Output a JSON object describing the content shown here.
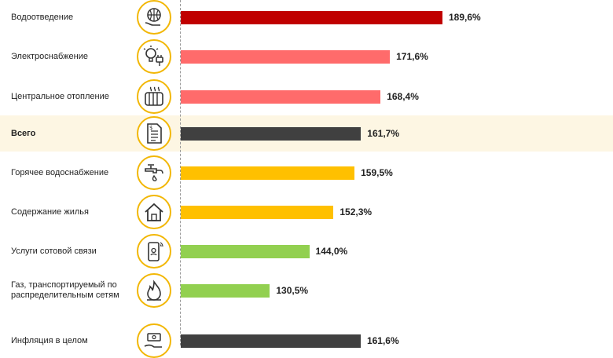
{
  "colors": {
    "dark_red": "#c00000",
    "salmon": "#ff6b6b",
    "dark": "#404040",
    "amber": "#ffc000",
    "green": "#92d050",
    "highlight_row": "#fdf6e3",
    "icon_ring": "#f2b705"
  },
  "chart_data": {
    "type": "bar",
    "orientation": "horizontal",
    "value_suffix": "%",
    "grid": false,
    "legend": "none",
    "xlim": [
      100,
      190
    ],
    "rows": [
      {
        "label": "Водоотведение",
        "value": 189.6,
        "value_label": "189,6%",
        "color": "#c00000",
        "icon": "globe-hand-icon",
        "bold": false,
        "highlight": false
      },
      {
        "label": "Электроснабжение",
        "value": 171.6,
        "value_label": "171,6%",
        "color": "#ff6b6b",
        "icon": "bulb-plug-icon",
        "bold": false,
        "highlight": false
      },
      {
        "label": "Центральное отопление",
        "value": 168.4,
        "value_label": "168,4%",
        "color": "#ff6b6b",
        "icon": "radiator-icon",
        "bold": false,
        "highlight": false
      },
      {
        "label": "Всего",
        "value": 161.7,
        "value_label": "161,7%",
        "color": "#404040",
        "icon": "invoice-icon",
        "bold": true,
        "highlight": true
      },
      {
        "label": "Горячее водоснабжение",
        "value": 159.5,
        "value_label": "159,5%",
        "color": "#ffc000",
        "icon": "faucet-icon",
        "bold": false,
        "highlight": false
      },
      {
        "label": "Содержание жилья",
        "value": 152.3,
        "value_label": "152,3%",
        "color": "#ffc000",
        "icon": "house-icon",
        "bold": false,
        "highlight": false
      },
      {
        "label": "Услуги сотовой связи",
        "value": 144.0,
        "value_label": "144,0%",
        "color": "#92d050",
        "icon": "phone-icon",
        "bold": false,
        "highlight": false
      },
      {
        "label": "Газ, транспортируемый по распределительным сетям",
        "value": 130.5,
        "value_label": "130,5%",
        "color": "#92d050",
        "icon": "flame-icon",
        "bold": false,
        "highlight": false
      },
      {
        "label": "Инфляция в целом",
        "value": 161.6,
        "value_label": "161,6%",
        "color": "#404040",
        "icon": "money-hand-icon",
        "bold": false,
        "highlight": false
      }
    ]
  }
}
